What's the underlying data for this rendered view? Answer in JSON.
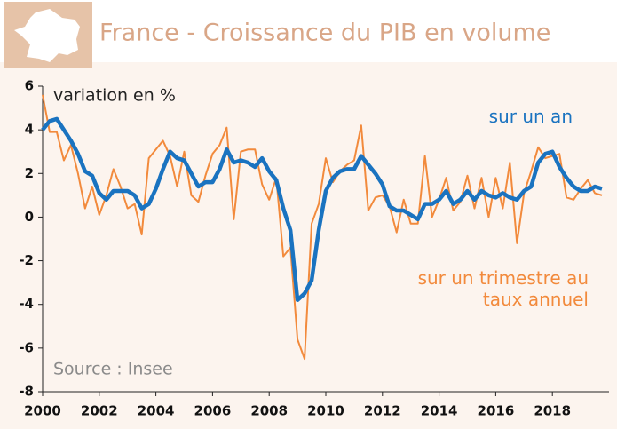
{
  "chart_data": {
    "type": "line",
    "title": "France - Croissance du PIB en volume",
    "y_label": "variation en %",
    "source": "Source : Insee",
    "x": [
      2000,
      2000.25,
      2000.5,
      2000.75,
      2001,
      2001.25,
      2001.5,
      2001.75,
      2002,
      2002.25,
      2002.5,
      2002.75,
      2003,
      2003.25,
      2003.5,
      2003.75,
      2004,
      2004.25,
      2004.5,
      2004.75,
      2005,
      2005.25,
      2005.5,
      2005.75,
      2006,
      2006.25,
      2006.5,
      2006.75,
      2007,
      2007.25,
      2007.5,
      2007.75,
      2008,
      2008.25,
      2008.5,
      2008.75,
      2009,
      2009.25,
      2009.5,
      2009.75,
      2010,
      2010.25,
      2010.5,
      2010.75,
      2011,
      2011.25,
      2011.5,
      2011.75,
      2012,
      2012.25,
      2012.5,
      2012.75,
      2013,
      2013.25,
      2013.5,
      2013.75,
      2014,
      2014.25,
      2014.5,
      2014.75,
      2015,
      2015.25,
      2015.5,
      2015.75,
      2016,
      2016.25,
      2016.5,
      2016.75,
      2017,
      2017.25,
      2017.5,
      2017.75,
      2018,
      2018.25,
      2018.5,
      2018.75,
      2019,
      2019.25,
      2019.5,
      2019.75
    ],
    "series": [
      {
        "name": "sur un trimestre au taux annuel",
        "color": "#f28a3c",
        "width": 2,
        "values": [
          5.6,
          3.9,
          3.9,
          2.6,
          3.3,
          2.0,
          0.4,
          1.4,
          0.1,
          1.0,
          2.2,
          1.4,
          0.4,
          0.6,
          -0.8,
          2.7,
          3.1,
          3.5,
          2.8,
          1.4,
          3.0,
          1.0,
          0.7,
          1.9,
          2.9,
          3.3,
          4.1,
          -0.1,
          3.0,
          3.1,
          3.1,
          1.5,
          0.8,
          1.8,
          -1.8,
          -1.4,
          -5.6,
          -6.5,
          -0.3,
          0.6,
          2.7,
          1.6,
          2.1,
          2.4,
          2.6,
          4.2,
          0.3,
          0.9,
          1.0,
          0.5,
          -0.7,
          0.8,
          -0.3,
          -0.3,
          2.8,
          0.0,
          0.8,
          1.8,
          0.3,
          0.7,
          1.9,
          0.4,
          1.8,
          0.0,
          1.8,
          0.4,
          2.5,
          -1.2,
          1.1,
          2.1,
          3.2,
          2.7,
          2.8,
          2.9,
          0.9,
          0.8,
          1.3,
          1.7,
          1.1,
          1.0
        ]
      },
      {
        "name": "sur un an",
        "color": "#1a73c0",
        "width": 4.5,
        "values": [
          4.0,
          4.4,
          4.5,
          4.0,
          3.5,
          2.9,
          2.1,
          1.9,
          1.1,
          0.8,
          1.2,
          1.2,
          1.2,
          1.0,
          0.4,
          0.6,
          1.3,
          2.2,
          3.0,
          2.7,
          2.6,
          2.0,
          1.4,
          1.6,
          1.6,
          2.2,
          3.1,
          2.5,
          2.6,
          2.5,
          2.3,
          2.7,
          2.1,
          1.7,
          0.4,
          -0.6,
          -3.8,
          -3.5,
          -2.9,
          -0.6,
          1.2,
          1.8,
          2.1,
          2.2,
          2.2,
          2.8,
          2.4,
          2.0,
          1.5,
          0.5,
          0.3,
          0.3,
          0.1,
          -0.1,
          0.6,
          0.6,
          0.8,
          1.2,
          0.6,
          0.8,
          1.2,
          0.8,
          1.2,
          1.0,
          0.9,
          1.1,
          0.9,
          0.8,
          1.2,
          1.4,
          2.5,
          2.9,
          3.0,
          2.3,
          1.8,
          1.4,
          1.2,
          1.2,
          1.4,
          1.3
        ]
      }
    ],
    "xlim": [
      2000,
      2020
    ],
    "ylim": [
      -8,
      6
    ],
    "xticks": [
      2000,
      2002,
      2004,
      2006,
      2008,
      2010,
      2012,
      2014,
      2016,
      2018
    ],
    "yticks": [
      -8,
      -6,
      -4,
      -2,
      0,
      2,
      4,
      6
    ]
  }
}
